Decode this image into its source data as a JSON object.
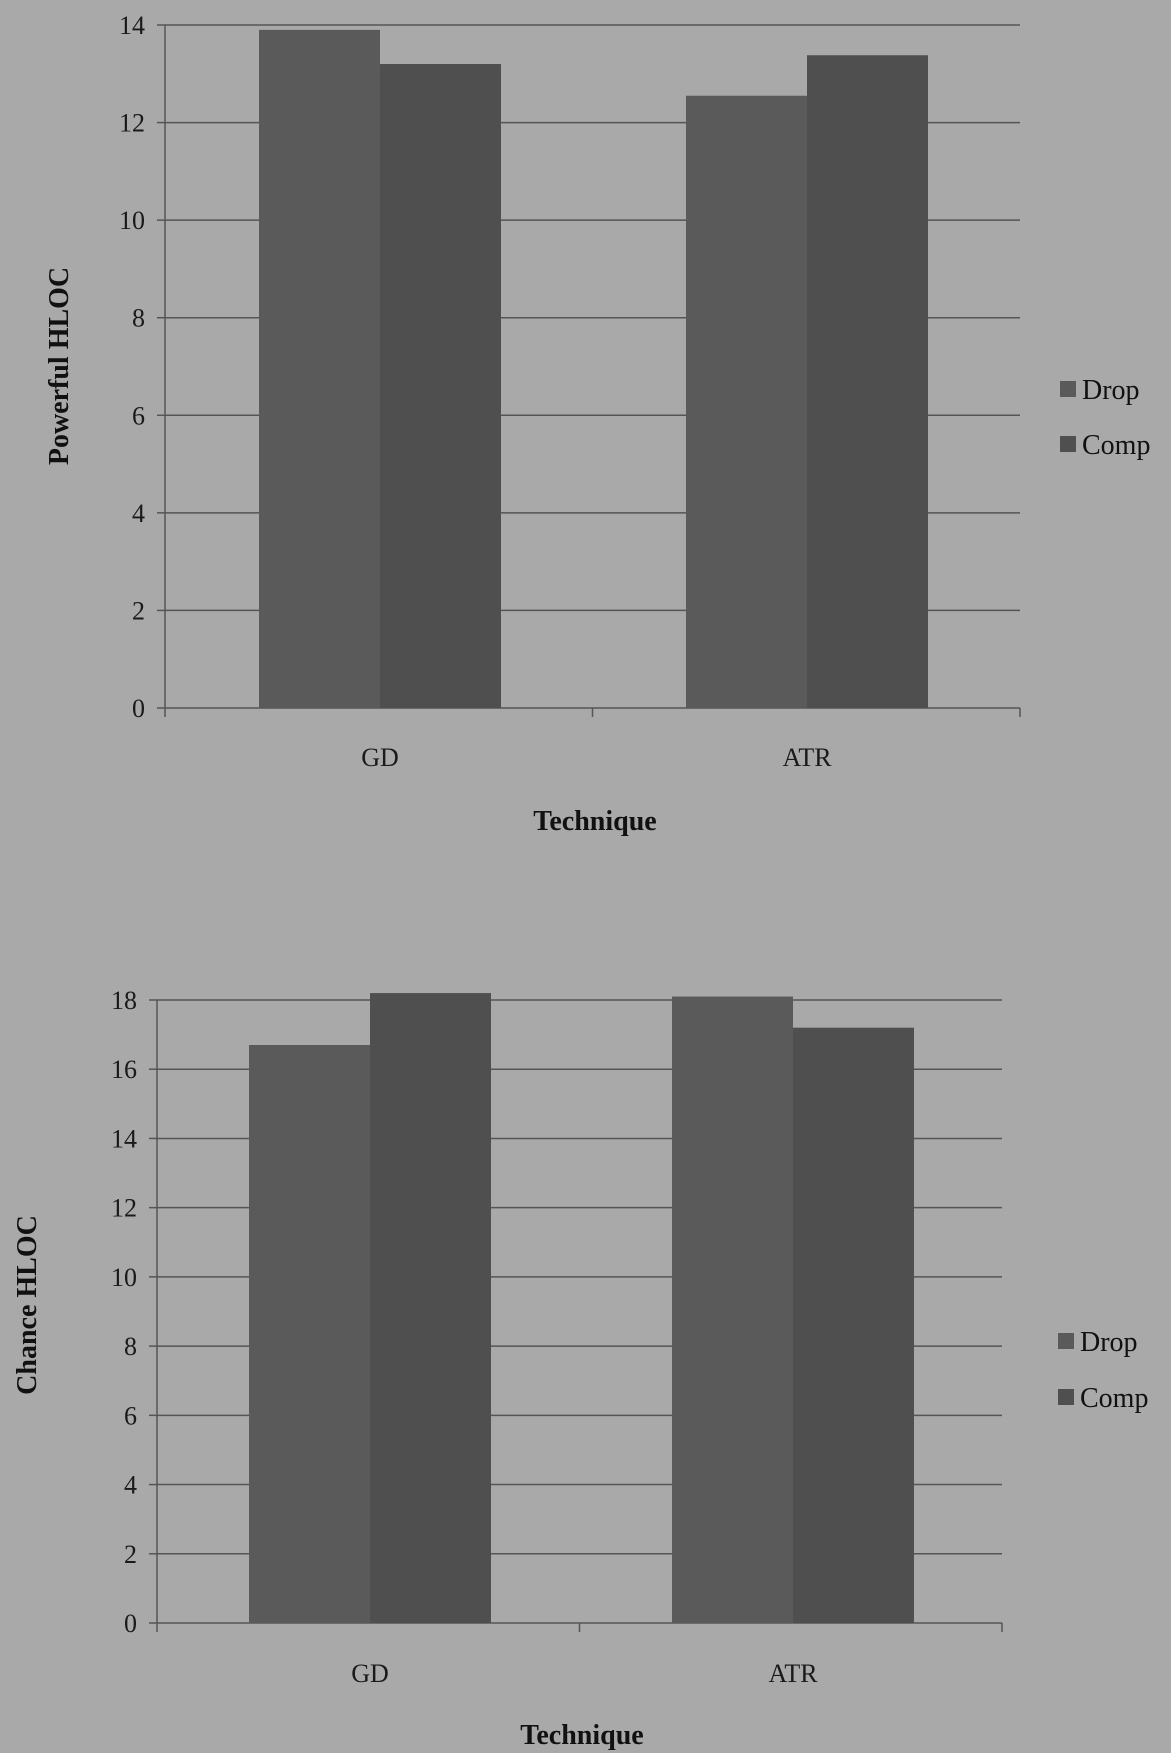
{
  "colors": {
    "background": "#a9a9a9",
    "grid": "#555555",
    "axis": "#555555",
    "drop": "#5a5a5a",
    "comp": "#4f4f4f"
  },
  "chart_data": [
    {
      "type": "bar",
      "title": "",
      "xlabel": "Technique",
      "ylabel": "Powerful HLOC",
      "categories": [
        "GD",
        "ATR"
      ],
      "series": [
        {
          "name": "Drop",
          "values": [
            13.9,
            12.55
          ]
        },
        {
          "name": "Comp",
          "values": [
            13.2,
            13.38
          ]
        }
      ],
      "ylim": [
        0,
        14
      ],
      "yticks": [
        0,
        2,
        4,
        6,
        8,
        10,
        12,
        14
      ],
      "grid": true,
      "legend": "right"
    },
    {
      "type": "bar",
      "title": "",
      "xlabel": "Technique",
      "ylabel": "Chance HLOC",
      "categories": [
        "GD",
        "ATR"
      ],
      "series": [
        {
          "name": "Drop",
          "values": [
            16.7,
            18.1
          ]
        },
        {
          "name": "Comp",
          "values": [
            18.2,
            17.2
          ]
        }
      ],
      "ylim": [
        0,
        18
      ],
      "yticks": [
        0,
        2,
        4,
        6,
        8,
        10,
        12,
        14,
        16,
        18
      ],
      "grid": true,
      "legend": "right"
    }
  ]
}
